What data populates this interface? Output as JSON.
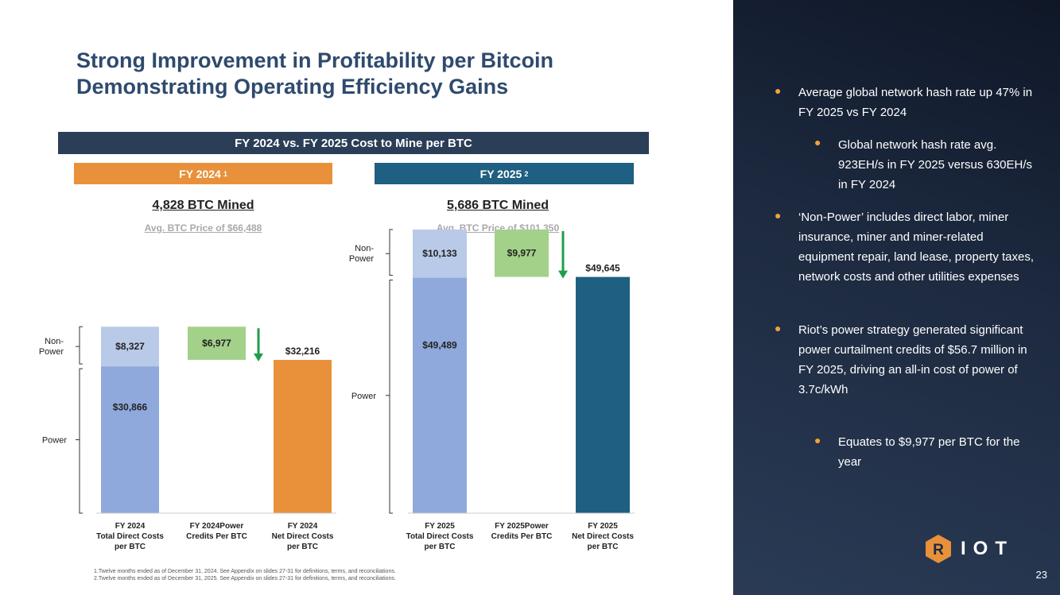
{
  "title": {
    "line1": "Strong Improvement in Profitability per Bitcoin",
    "line2": "Demonstrating Operating Efficiency Gains"
  },
  "header": "FY 2024 vs. FY 2025 Cost to Mine per BTC",
  "fy2024": {
    "label": "FY 2024",
    "note": "1",
    "mined": "4,828 BTC Mined",
    "avg_price": "Avg. BTC Price of $66,488"
  },
  "fy2025": {
    "label": "FY 2025",
    "note": "2",
    "mined": "5,686 BTC Mined",
    "avg_price": "Avg. BTC Price of $101,350"
  },
  "chart_data": [
    {
      "type": "bar",
      "title": "FY 2024",
      "categories": [
        "FY 2024 Total Direct Costs per BTC",
        "FY 2024Power Credits Per BTC",
        "FY 2024 Net Direct Costs per BTC"
      ],
      "category_lines": [
        [
          "FY 2024",
          "Total Direct Costs",
          "per BTC"
        ],
        [
          "FY 2024Power",
          "Credits Per BTC"
        ],
        [
          "FY 2024",
          "Net Direct Costs",
          "per BTC"
        ]
      ],
      "total": {
        "power": 30866,
        "non_power": 8327,
        "power_label": "$30,866",
        "non_power_label": "$8,327"
      },
      "credits": {
        "value": 6977,
        "label": "$6,977"
      },
      "net": {
        "value": 32216,
        "label": "$32,216"
      },
      "bracket_labels": {
        "non_power": [
          "Non-",
          "Power"
        ],
        "power": "Power"
      },
      "colors": {
        "power": "#8fa9dc",
        "non_power": "#b9c9e8",
        "credits": "#a3d18a",
        "net": "#e8913a",
        "arrow": "#1f9e4a"
      }
    },
    {
      "type": "bar",
      "title": "FY 2025",
      "categories": [
        "FY 2025 Total Direct Costs per BTC",
        "FY 2025Power Credits Per BTC",
        "FY 2025 Net Direct Costs per BTC"
      ],
      "category_lines": [
        [
          "FY 2025",
          "Total Direct Costs",
          "per BTC"
        ],
        [
          "FY 2025Power",
          "Credits Per BTC"
        ],
        [
          "FY 2025",
          "Net Direct Costs",
          "per BTC"
        ]
      ],
      "total": {
        "power": 49489,
        "non_power": 10133,
        "power_label": "$49,489",
        "non_power_label": "$10,133"
      },
      "credits": {
        "value": 9977,
        "label": "$9,977"
      },
      "net": {
        "value": 49645,
        "label": "$49,645"
      },
      "bracket_labels": {
        "non_power": [
          "Non-",
          "Power"
        ],
        "power": "Power"
      },
      "colors": {
        "power": "#8fa9dc",
        "non_power": "#b9c9e8",
        "credits": "#a3d18a",
        "net": "#1f5f82",
        "arrow": "#1f9e4a"
      }
    }
  ],
  "footnotes": [
    "1.Twelve months ended as of December 31, 2024. See Appendix on slides 27-31 for definitions, terms, and reconciliations.",
    "2.Twelve months ended as of December 31, 2025. See Appendix on slides 27-31 for definitions, terms, and reconciliations."
  ],
  "bullets": {
    "b1": "Average global network hash rate up 47% in FY 2025 vs FY 2024",
    "b1a": "Global network hash rate avg. 923EH/s in FY 2025 versus 630EH/s in FY 2024",
    "b2": "‘Non-Power’ includes direct labor, miner insurance, miner and miner-related equipment repair, land lease, property taxes, network costs and other utilities expenses",
    "b3": "Riot’s power strategy generated significant power curtailment credits of $56.7 million in FY 2025, driving an all-in cost of power of 3.7c/kWh",
    "b3a": "Equates to $9,977 per BTC for the year"
  },
  "logo": {
    "letter": "R",
    "text": "IOT",
    "icon": "riot-hexagon-icon"
  },
  "page_number": "23"
}
